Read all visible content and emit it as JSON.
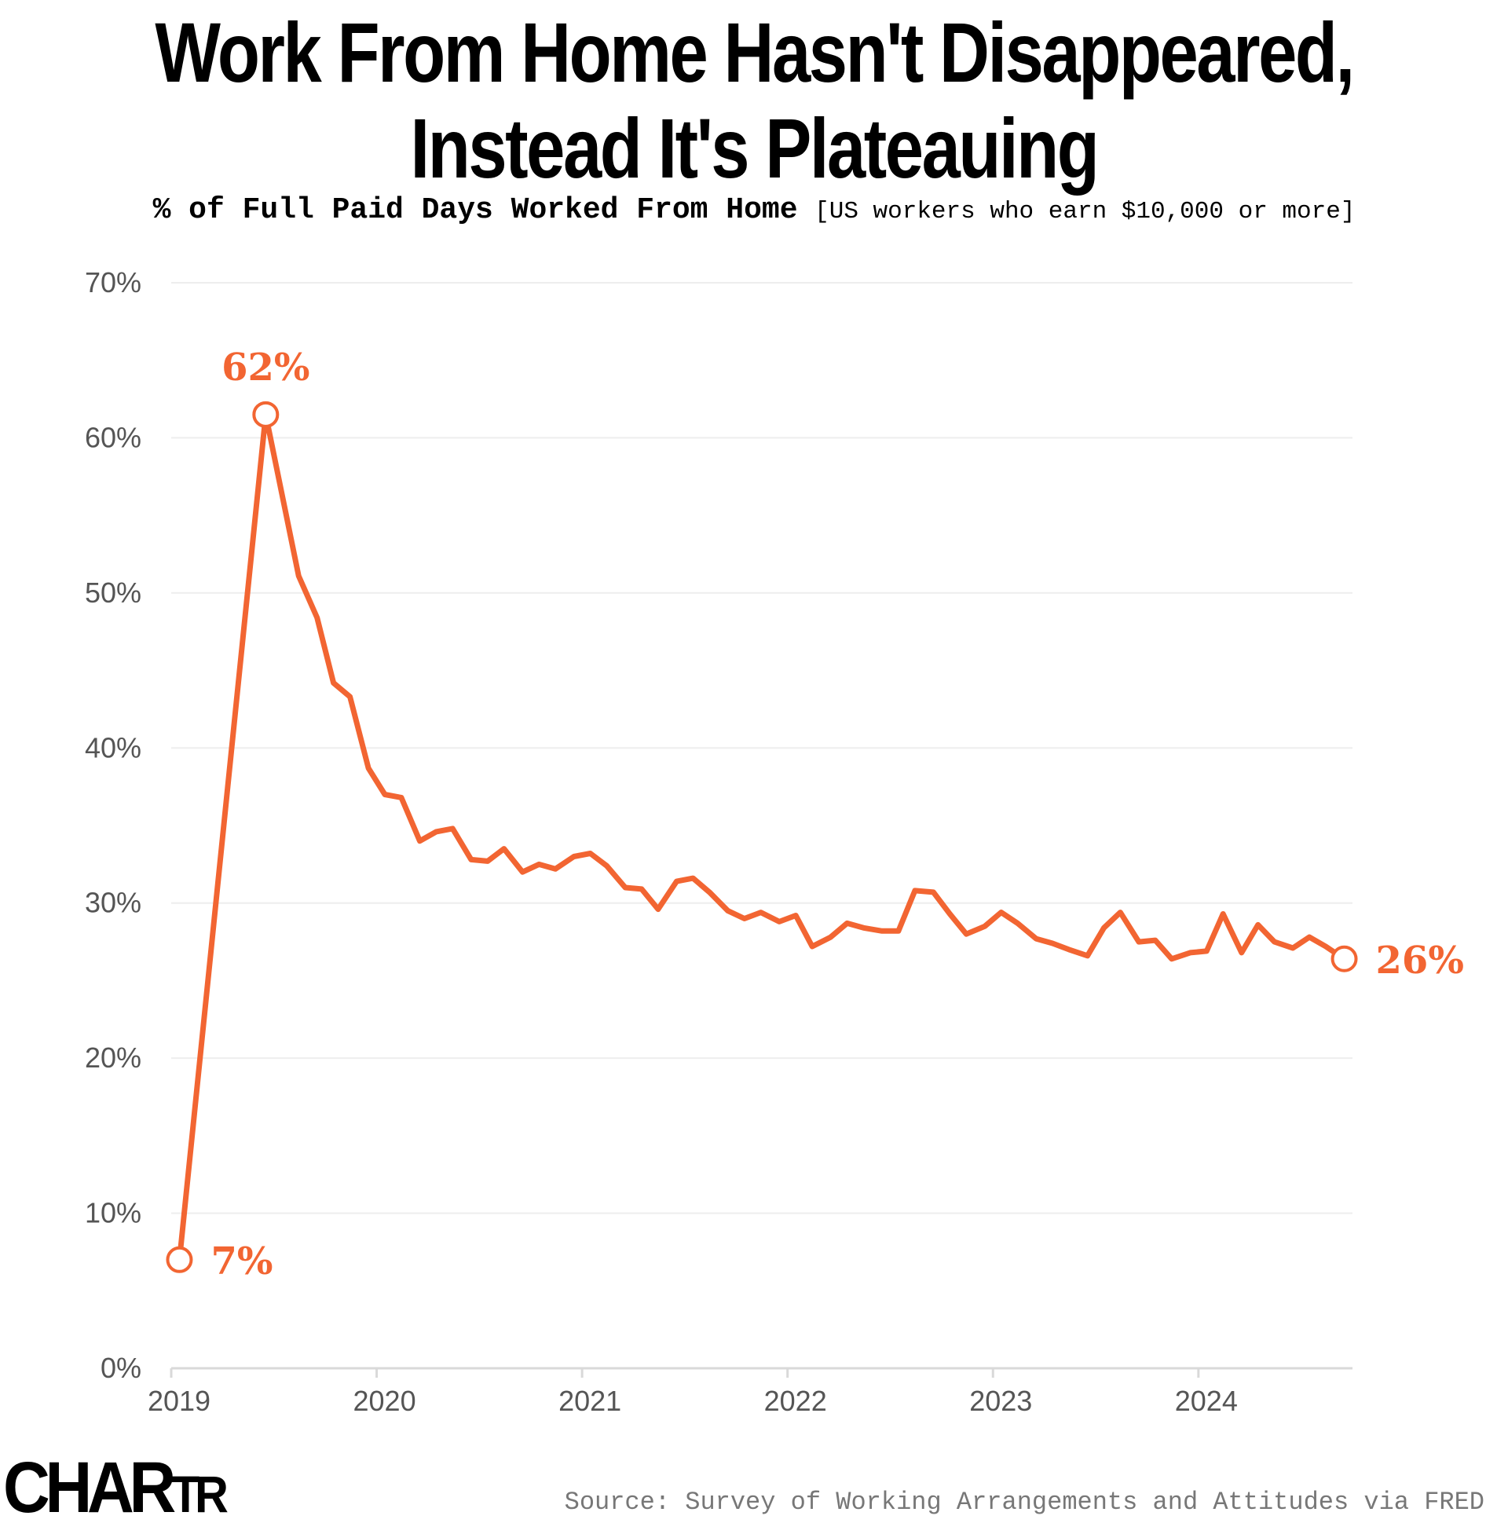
{
  "title": {
    "line1": "Work From Home Hasn't Disappeared,",
    "line2": "Instead It's Plateauing"
  },
  "subtitle": {
    "main": "% of Full Paid Days Worked From Home",
    "note": "[US workers who earn $10,000 or more]"
  },
  "source": "Source: Survey of Working Arrangements and Attitudes via FRED",
  "logo": {
    "big": "CHA",
    "mid": "R",
    "small": "TR"
  },
  "colors": {
    "line": "#f26532",
    "grid": "#eeeeee",
    "axis": "#d9d9d9",
    "tick_text": "#555555",
    "source_text": "#777777"
  },
  "chart_data": {
    "type": "line",
    "title": "Work From Home Hasn't Disappeared, Instead It's Plateauing",
    "ylabel": "% of Full Paid Days Worked From Home",
    "ylim": [
      0,
      70
    ],
    "xlim": [
      2019.0,
      2024.75
    ],
    "y_ticks": [
      0,
      10,
      20,
      30,
      40,
      50,
      60,
      70
    ],
    "y_tick_labels": [
      "0%",
      "10%",
      "20%",
      "30%",
      "40%",
      "50%",
      "60%",
      "70%"
    ],
    "x_ticks": [
      2019,
      2020,
      2021,
      2022,
      2023,
      2024
    ],
    "x_tick_labels": [
      "2019",
      "2020",
      "2021",
      "2022",
      "2023",
      "2024"
    ],
    "grid": true,
    "series": [
      {
        "x": [
          2019.04,
          2019.46,
          2019.62,
          2019.71,
          2019.79,
          2019.87,
          2019.96,
          2020.04,
          2020.12,
          2020.21,
          2020.29,
          2020.37,
          2020.46,
          2020.54,
          2020.62,
          2020.71,
          2020.79,
          2020.87,
          2020.96,
          2021.04,
          2021.12,
          2021.21,
          2021.29,
          2021.37,
          2021.46,
          2021.54,
          2021.62,
          2021.71,
          2021.79,
          2021.87,
          2021.96,
          2022.04,
          2022.12,
          2022.21,
          2022.29,
          2022.37,
          2022.46,
          2022.54,
          2022.62,
          2022.71,
          2022.79,
          2022.87,
          2022.96,
          2023.04,
          2023.12,
          2023.21,
          2023.29,
          2023.37,
          2023.46,
          2023.54,
          2023.62,
          2023.71,
          2023.79,
          2023.87,
          2023.96,
          2024.04,
          2024.12,
          2024.21,
          2024.29,
          2024.37,
          2024.46,
          2024.54,
          2024.62,
          2024.71
        ],
        "values": [
          7.0,
          61.5,
          51.1,
          48.4,
          44.2,
          43.3,
          38.7,
          37.0,
          36.8,
          34.0,
          34.6,
          34.8,
          32.8,
          32.7,
          33.5,
          32.0,
          32.5,
          32.2,
          33.0,
          33.2,
          32.4,
          31.0,
          30.9,
          29.6,
          31.4,
          31.6,
          30.7,
          29.5,
          29.0,
          29.4,
          28.8,
          29.2,
          27.2,
          27.8,
          28.7,
          28.4,
          28.2,
          28.2,
          30.8,
          30.7,
          29.3,
          28.0,
          28.5,
          29.4,
          28.7,
          27.7,
          27.4,
          27.0,
          26.6,
          28.4,
          29.4,
          27.5,
          27.6,
          26.4,
          26.8,
          26.9,
          29.3,
          26.8,
          28.6,
          27.5,
          27.1,
          27.8,
          27.2,
          26.4
        ]
      }
    ],
    "annotations": [
      {
        "label": "7%",
        "x": 2019.04,
        "y": 7.0,
        "position": "right"
      },
      {
        "label": "62%",
        "x": 2019.46,
        "y": 61.5,
        "position": "above"
      },
      {
        "label": "26%",
        "x": 2024.71,
        "y": 26.4,
        "position": "right"
      }
    ]
  }
}
